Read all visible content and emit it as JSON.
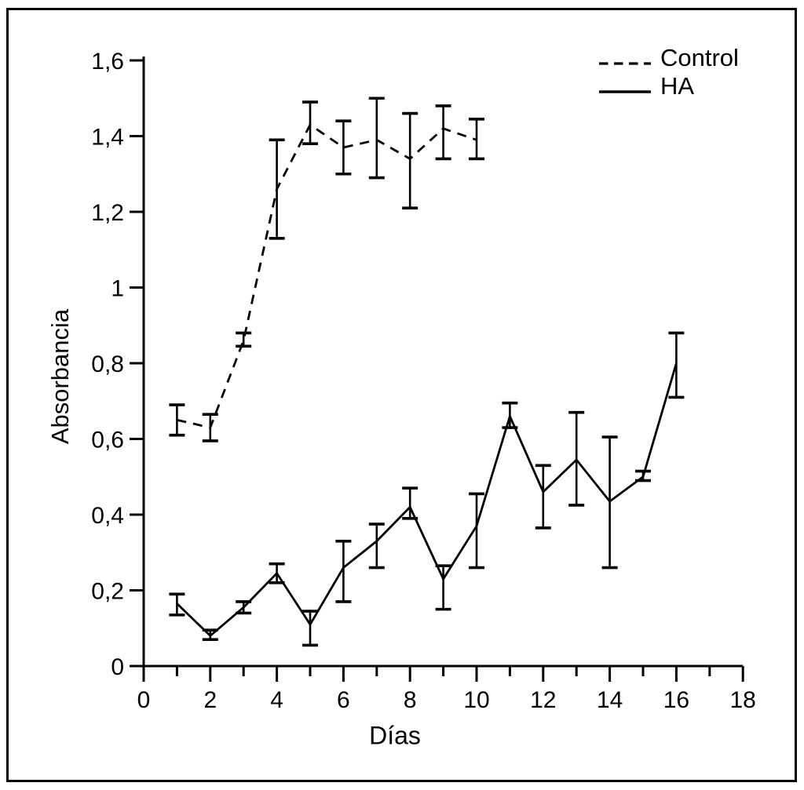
{
  "figure": {
    "background": "#ffffff",
    "border_color": "#000000",
    "line_color": "#000000"
  },
  "chart_data": {
    "type": "line",
    "title": "",
    "xlabel": "Días",
    "ylabel": "Absorbancia",
    "xlim": [
      0,
      18
    ],
    "ylim": [
      0,
      1.6
    ],
    "grid": false,
    "legend": {
      "position": "top-right-inside",
      "entries": [
        {
          "label": "Control",
          "line_style": "dashed"
        },
        {
          "label": "HA",
          "line_style": "solid"
        }
      ]
    },
    "x_axis": {
      "major_tick_values": [
        0,
        2,
        4,
        6,
        8,
        10,
        12,
        14,
        16,
        18
      ],
      "major_tick_labels": [
        "0",
        "2",
        "4",
        "6",
        "8",
        "10",
        "12",
        "14",
        "16",
        "18"
      ],
      "minor_tick_values": [
        1,
        3,
        5,
        7,
        9,
        11,
        13,
        15,
        17
      ]
    },
    "y_axis": {
      "tick_values": [
        0,
        0.2,
        0.4,
        0.6,
        0.8,
        1.0,
        1.2,
        1.4,
        1.6
      ],
      "tick_labels": [
        "0",
        "0,2",
        "0,4",
        "0,6",
        "0,8",
        "1",
        "1,2",
        "1,4",
        "1,6"
      ]
    },
    "series": [
      {
        "name": "Control",
        "line_style": "dashed",
        "x": [
          1,
          2,
          3,
          4,
          5,
          6,
          7,
          8,
          9,
          10
        ],
        "y": [
          0.65,
          0.63,
          0.86,
          1.26,
          1.43,
          1.37,
          1.39,
          1.34,
          1.42,
          1.39
        ],
        "y_lower": [
          0.61,
          0.595,
          0.845,
          1.13,
          1.38,
          1.3,
          1.29,
          1.21,
          1.34,
          1.34
        ],
        "y_upper": [
          0.69,
          0.665,
          0.88,
          1.39,
          1.49,
          1.44,
          1.5,
          1.46,
          1.48,
          1.445
        ]
      },
      {
        "name": "HA",
        "line_style": "solid",
        "x": [
          1,
          2,
          3,
          4,
          5,
          6,
          7,
          8,
          9,
          10,
          11,
          12,
          13,
          14,
          15,
          16
        ],
        "y": [
          0.165,
          0.08,
          0.155,
          0.245,
          0.11,
          0.26,
          0.33,
          0.42,
          0.23,
          0.37,
          0.66,
          0.46,
          0.545,
          0.435,
          0.5,
          0.8
        ],
        "y_lower": [
          0.135,
          0.07,
          0.14,
          0.22,
          0.055,
          0.17,
          0.26,
          0.39,
          0.15,
          0.26,
          0.63,
          0.365,
          0.425,
          0.26,
          0.49,
          0.71
        ],
        "y_upper": [
          0.19,
          0.095,
          0.17,
          0.27,
          0.145,
          0.33,
          0.375,
          0.47,
          0.265,
          0.455,
          0.695,
          0.53,
          0.67,
          0.605,
          0.515,
          0.88
        ]
      }
    ]
  }
}
